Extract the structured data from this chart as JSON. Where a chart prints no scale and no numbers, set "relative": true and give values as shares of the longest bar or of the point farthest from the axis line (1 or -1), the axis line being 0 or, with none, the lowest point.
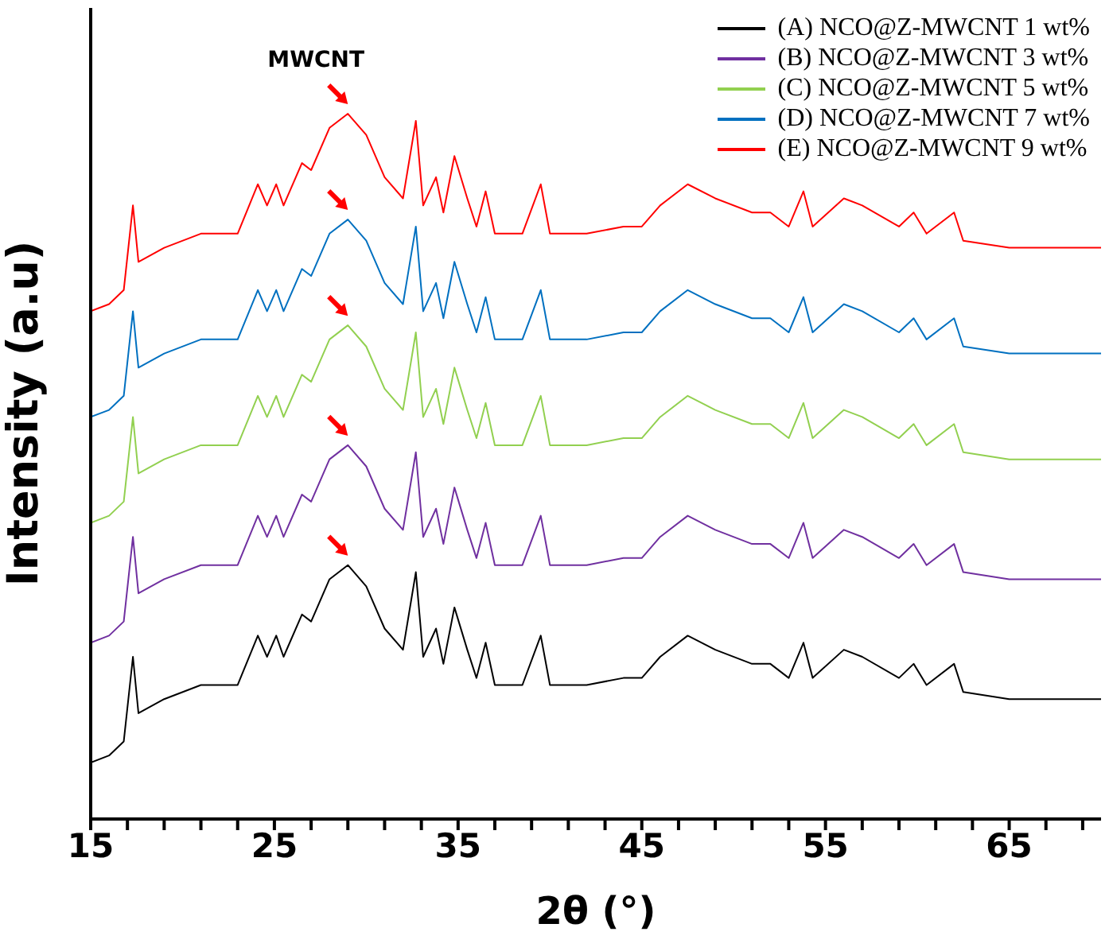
{
  "chart_data": {
    "type": "line",
    "relative": true,
    "xlabel": "2θ (°)",
    "ylabel": "Intensity (a.u)",
    "annotations": [
      "MWCNT"
    ],
    "legend": "top right",
    "grid": false,
    "marker": "none",
    "line_style": "solid",
    "x": [
      15,
      16,
      16.8,
      17.3,
      17.6,
      19,
      21,
      23,
      24.1,
      24.6,
      25.1,
      25.5,
      26.5,
      27,
      28,
      29,
      30,
      31,
      32,
      32.7,
      33.1,
      33.8,
      34.2,
      34.8,
      35.5,
      36,
      36.5,
      37,
      38.5,
      39.5,
      40,
      42,
      44,
      45,
      46,
      47.5,
      49,
      51,
      52,
      53,
      53.8,
      54.3,
      56,
      57,
      59,
      59.8,
      60.5,
      62,
      62.5,
      65,
      70
    ],
    "xlim": [
      15,
      70
    ],
    "xticks": [
      15,
      {
        "value": 17,
        "label": null
      },
      {
        "value": 19,
        "label": null
      },
      {
        "value": 21,
        "label": null
      },
      {
        "value": 23,
        "label": null
      },
      25,
      {
        "value": 27,
        "label": null
      },
      {
        "value": 29,
        "label": null
      },
      {
        "value": 31,
        "label": null
      },
      {
        "value": 33,
        "label": null
      },
      35,
      {
        "value": 37,
        "label": null
      },
      {
        "value": 39,
        "label": null
      },
      {
        "value": 41,
        "label": null
      },
      {
        "value": 43,
        "label": null
      },
      45,
      {
        "value": 47,
        "label": null
      },
      {
        "value": 49,
        "label": null
      },
      {
        "value": 51,
        "label": null
      },
      {
        "value": 53,
        "label": null
      },
      55,
      {
        "value": 57,
        "label": null
      },
      {
        "value": 59,
        "label": null
      },
      {
        "value": 61,
        "label": null
      },
      {
        "value": 63,
        "label": null
      },
      65,
      {
        "value": 67,
        "label": null
      },
      {
        "value": 69,
        "label": null
      }
    ],
    "series": [
      {
        "name": "(A) NCO@Z-MWCNT 1 wt%",
        "color": "#000000",
        "values": [
          0.08,
          0.09,
          0.11,
          0.23,
          0.15,
          0.17,
          0.19,
          0.19,
          0.26,
          0.23,
          0.26,
          0.23,
          0.29,
          0.28,
          0.34,
          0.36,
          0.33,
          0.27,
          0.24,
          0.35,
          0.23,
          0.27,
          0.22,
          0.3,
          0.24,
          0.2,
          0.25,
          0.19,
          0.19,
          0.26,
          0.19,
          0.19,
          0.2,
          0.2,
          0.23,
          0.26,
          0.24,
          0.22,
          0.22,
          0.2,
          0.25,
          0.2,
          0.24,
          0.23,
          0.2,
          0.22,
          0.19,
          0.22,
          0.18,
          0.17,
          0.17
        ]
      },
      {
        "name": "(B) NCO@Z-MWCNT 3 wt%",
        "color": "#7030a0",
        "values": [
          0.25,
          0.26,
          0.28,
          0.4,
          0.32,
          0.34,
          0.36,
          0.36,
          0.43,
          0.4,
          0.43,
          0.4,
          0.46,
          0.45,
          0.51,
          0.53,
          0.5,
          0.44,
          0.41,
          0.52,
          0.4,
          0.44,
          0.39,
          0.47,
          0.41,
          0.37,
          0.42,
          0.36,
          0.36,
          0.43,
          0.36,
          0.36,
          0.37,
          0.37,
          0.4,
          0.43,
          0.41,
          0.39,
          0.39,
          0.37,
          0.42,
          0.37,
          0.41,
          0.4,
          0.37,
          0.39,
          0.36,
          0.39,
          0.35,
          0.34,
          0.34
        ]
      },
      {
        "name": "(C) NCO@Z-MWCNT 5 wt%",
        "color": "#92d050",
        "values": [
          0.42,
          0.43,
          0.45,
          0.57,
          0.49,
          0.51,
          0.53,
          0.53,
          0.6,
          0.57,
          0.6,
          0.57,
          0.63,
          0.62,
          0.68,
          0.7,
          0.67,
          0.61,
          0.58,
          0.69,
          0.57,
          0.61,
          0.56,
          0.64,
          0.58,
          0.54,
          0.59,
          0.53,
          0.53,
          0.6,
          0.53,
          0.53,
          0.54,
          0.54,
          0.57,
          0.6,
          0.58,
          0.56,
          0.56,
          0.54,
          0.59,
          0.54,
          0.58,
          0.57,
          0.54,
          0.56,
          0.53,
          0.56,
          0.52,
          0.51,
          0.51
        ]
      },
      {
        "name": "(D) NCO@Z-MWCNT 7 wt%",
        "color": "#0070c0",
        "values": [
          0.57,
          0.58,
          0.6,
          0.72,
          0.64,
          0.66,
          0.68,
          0.68,
          0.75,
          0.72,
          0.75,
          0.72,
          0.78,
          0.77,
          0.83,
          0.85,
          0.82,
          0.76,
          0.73,
          0.84,
          0.72,
          0.76,
          0.71,
          0.79,
          0.73,
          0.69,
          0.74,
          0.68,
          0.68,
          0.75,
          0.68,
          0.68,
          0.69,
          0.69,
          0.72,
          0.75,
          0.73,
          0.71,
          0.71,
          0.69,
          0.74,
          0.69,
          0.73,
          0.72,
          0.69,
          0.71,
          0.68,
          0.71,
          0.67,
          0.66,
          0.66
        ]
      },
      {
        "name": "(E) NCO@Z-MWCNT 9 wt%",
        "color": "#ff0000",
        "values": [
          0.72,
          0.73,
          0.75,
          0.87,
          0.79,
          0.81,
          0.83,
          0.83,
          0.9,
          0.87,
          0.9,
          0.87,
          0.93,
          0.92,
          0.98,
          1.0,
          0.97,
          0.91,
          0.88,
          0.99,
          0.87,
          0.91,
          0.86,
          0.94,
          0.88,
          0.84,
          0.89,
          0.83,
          0.83,
          0.9,
          0.83,
          0.83,
          0.84,
          0.84,
          0.87,
          0.9,
          0.88,
          0.86,
          0.86,
          0.84,
          0.89,
          0.84,
          0.88,
          0.87,
          0.84,
          0.86,
          0.83,
          0.86,
          0.82,
          0.81,
          0.81
        ]
      }
    ]
  }
}
